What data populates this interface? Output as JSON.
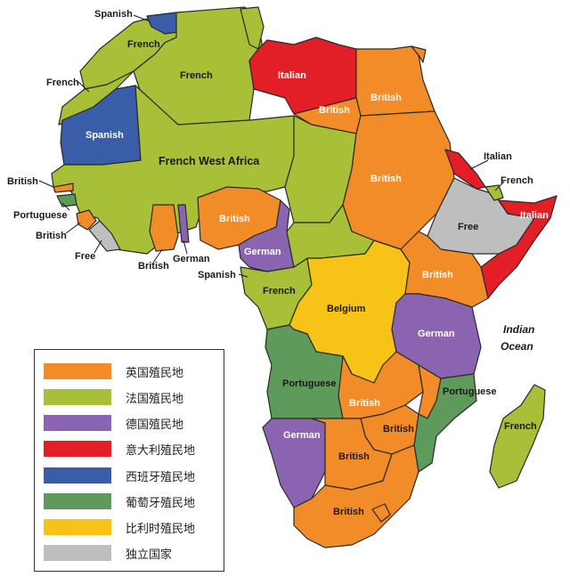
{
  "colors": {
    "british": "#F28C28",
    "french": "#A7C037",
    "german": "#8A64B0",
    "italian": "#E21E26",
    "spanish": "#3A5DA8",
    "portuguese": "#5E9A5A",
    "belgian": "#F6C316",
    "independent": "#BEBEBE"
  },
  "labels": {
    "spanish_north": "Spanish",
    "french_morocco": "French",
    "french_algeria": "French",
    "french_nw": "French",
    "italian_libya": "Italian",
    "british_egypt": "British",
    "british_sudan_north": "British",
    "spanish_sahara": "Spanish",
    "french_west_africa": "French West Africa",
    "italian_eritrea": "Italian",
    "french_somaliland": "French",
    "italian_somalia": "Italian",
    "british_gambia": "British",
    "portuguese_guinea": "Portuguese",
    "british_sierra_leone": "British",
    "free_liberia": "Free",
    "british_nigeria": "British",
    "british_sudan": "British",
    "free_ethiopia": "Free",
    "british_gold_coast": "British",
    "german_togo": "German",
    "spanish_guinea": "Spanish",
    "german_kamerun": "German",
    "french_equatorial": "French",
    "british_east_africa": "British",
    "belgium_congo": "Belgium",
    "german_east_africa": "German",
    "indian_ocean": "Indian\nOcean",
    "portuguese_angola": "Portuguese",
    "british_rhodesia": "British",
    "portuguese_mozambique": "Portuguese",
    "british_nyasa": "British",
    "german_sw_africa": "German",
    "british_bechuana": "British",
    "british_south_africa": "British",
    "french_madagascar": "French"
  },
  "legend": [
    {
      "label": "英国殖民地",
      "color": "#F28C28"
    },
    {
      "label": "法国殖民地",
      "color": "#A7C037"
    },
    {
      "label": "德国殖民地",
      "color": "#8A64B0"
    },
    {
      "label": "意大利殖民地",
      "color": "#E21E26"
    },
    {
      "label": "西班牙殖民地",
      "color": "#3A5DA8"
    },
    {
      "label": "葡萄牙殖民地",
      "color": "#5E9A5A"
    },
    {
      "label": "比利时殖民地",
      "color": "#F6C316"
    },
    {
      "label": "独立国家",
      "color": "#BEBEBE"
    }
  ]
}
